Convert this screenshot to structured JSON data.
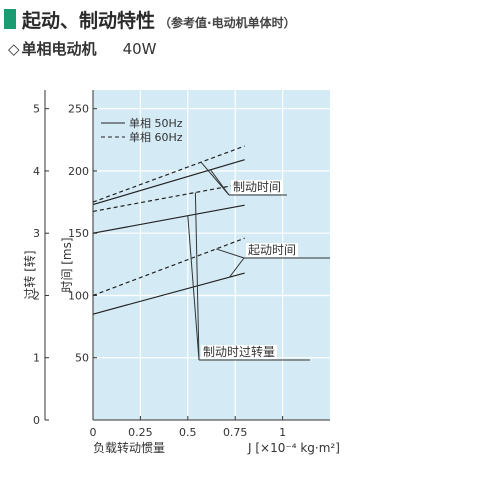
{
  "header": {
    "title": "起动、制动特性",
    "subtitle": "（参考值·电动机单体时）",
    "accent_color": "#1a9b72"
  },
  "section": {
    "symbol": "◇",
    "model": "单相电动机",
    "power": "40W"
  },
  "chart_data": {
    "type": "line",
    "background": "#d4ebf5",
    "xlabel": "负载转动惯量",
    "xunit": "J [×10⁻⁴ kg·m²]",
    "xlim": [
      0,
      1.25
    ],
    "xticks": [
      {
        "v": 0,
        "t": "0"
      },
      {
        "v": 0.25,
        "t": "0.25"
      },
      {
        "v": 0.5,
        "t": "0.5"
      },
      {
        "v": 0.75,
        "t": "0.75"
      },
      {
        "v": 1,
        "t": "1"
      }
    ],
    "ylabel_time": "时间 [ms]",
    "ylim_time": [
      0,
      265
    ],
    "yticks_time": [
      {
        "v": 50,
        "t": "50"
      },
      {
        "v": 100,
        "t": "100"
      },
      {
        "v": 150,
        "t": "150"
      },
      {
        "v": 200,
        "t": "200"
      },
      {
        "v": 250,
        "t": "250"
      }
    ],
    "ylabel_overrun": "过转 [转]",
    "ylim_overrun": [
      0,
      5.3
    ],
    "yticks_overrun": [
      {
        "v": 0,
        "t": "0"
      },
      {
        "v": 1,
        "t": "1"
      },
      {
        "v": 2,
        "t": "2"
      },
      {
        "v": 3,
        "t": "3"
      },
      {
        "v": 4,
        "t": "4"
      },
      {
        "v": 5,
        "t": "5"
      }
    ],
    "grid": true,
    "legend": {
      "placement": "top-left",
      "entries": [
        {
          "label": "单相  50Hz",
          "style": "solid"
        },
        {
          "label": "单相  60Hz",
          "style": "dashed"
        }
      ]
    },
    "groups": [
      {
        "label": "制动时间",
        "axis": "time",
        "series": [
          {
            "freq": "50Hz",
            "style": "solid",
            "x": [
              0,
              0.8
            ],
            "y": [
              173,
              209
            ]
          },
          {
            "freq": "60Hz",
            "style": "dashed",
            "x": [
              0,
              0.8
            ],
            "y": [
              175,
              220
            ]
          }
        ]
      },
      {
        "label": "起动时间",
        "axis": "time",
        "series": [
          {
            "freq": "50Hz",
            "style": "solid",
            "x": [
              0,
              0.8
            ],
            "y": [
              85,
              118
            ]
          },
          {
            "freq": "60Hz",
            "style": "dashed",
            "x": [
              0,
              0.8
            ],
            "y": [
              100,
              146
            ]
          }
        ]
      },
      {
        "label": "制动时过转量",
        "axis": "overrun",
        "series": [
          {
            "freq": "50Hz",
            "style": "solid",
            "x": [
              0,
              0.8
            ],
            "y": [
              3.0,
              3.45
            ]
          },
          {
            "freq": "60Hz",
            "style": "dashed",
            "x": [
              0,
              0.8
            ],
            "y": [
              3.35,
              3.8
            ]
          }
        ]
      }
    ]
  }
}
